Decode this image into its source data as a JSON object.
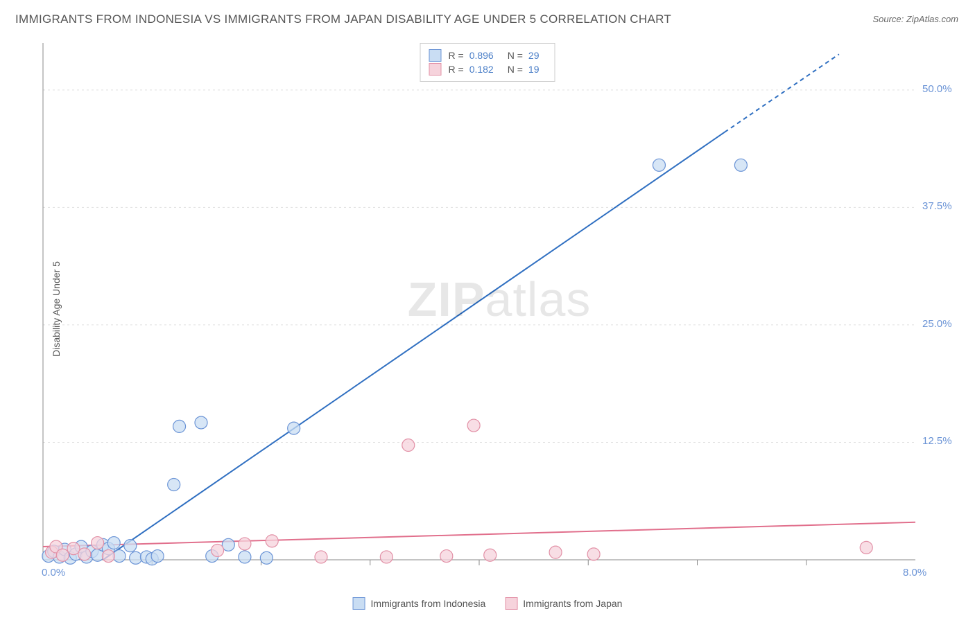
{
  "title": "IMMIGRANTS FROM INDONESIA VS IMMIGRANTS FROM JAPAN DISABILITY AGE UNDER 5 CORRELATION CHART",
  "source": "Source: ZipAtlas.com",
  "y_axis_label": "Disability Age Under 5",
  "watermark": "ZIPatlas",
  "chart": {
    "type": "scatter",
    "xlim": [
      0,
      8.0
    ],
    "ylim": [
      0,
      55.0
    ],
    "x_max_label": "8.0%",
    "origin_label": "0.0%",
    "y_ticks": [
      {
        "v": 12.5,
        "label": "12.5%"
      },
      {
        "v": 25.0,
        "label": "25.0%"
      },
      {
        "v": 37.5,
        "label": "37.5%"
      },
      {
        "v": 50.0,
        "label": "50.0%"
      }
    ],
    "x_ticks": [
      1,
      2,
      3,
      4,
      5,
      6,
      7
    ],
    "grid_color": "#e0e0e0",
    "axis_color": "#888888",
    "background_color": "#ffffff",
    "marker_radius": 9,
    "marker_stroke_width": 1.2,
    "line_width": 2,
    "series": [
      {
        "name": "Immigrants from Indonesia",
        "marker_fill": "#c9ddf3",
        "marker_stroke": "#6b94d6",
        "line_color": "#2f6fc1",
        "R": "0.896",
        "N": "29",
        "trend": {
          "x1": 0.55,
          "y1": 0,
          "x2": 6.25,
          "y2": 45.5,
          "dash_from_x": 6.25,
          "dash_to_x": 7.3,
          "dash_to_y": 53.8
        },
        "points": [
          {
            "x": 0.05,
            "y": 0.4
          },
          {
            "x": 0.1,
            "y": 0.9
          },
          {
            "x": 0.15,
            "y": 0.3
          },
          {
            "x": 0.2,
            "y": 1.1
          },
          {
            "x": 0.25,
            "y": 0.2
          },
          {
            "x": 0.3,
            "y": 0.6
          },
          {
            "x": 0.35,
            "y": 1.4
          },
          {
            "x": 0.4,
            "y": 0.3
          },
          {
            "x": 0.45,
            "y": 0.9
          },
          {
            "x": 0.5,
            "y": 0.5
          },
          {
            "x": 0.55,
            "y": 1.6
          },
          {
            "x": 0.6,
            "y": 1.2
          },
          {
            "x": 0.65,
            "y": 1.8
          },
          {
            "x": 0.7,
            "y": 0.4
          },
          {
            "x": 0.8,
            "y": 1.5
          },
          {
            "x": 0.85,
            "y": 0.2
          },
          {
            "x": 0.95,
            "y": 0.3
          },
          {
            "x": 1.0,
            "y": 0.1
          },
          {
            "x": 1.05,
            "y": 0.4
          },
          {
            "x": 1.2,
            "y": 8.0
          },
          {
            "x": 1.25,
            "y": 14.2
          },
          {
            "x": 1.45,
            "y": 14.6
          },
          {
            "x": 1.55,
            "y": 0.4
          },
          {
            "x": 1.7,
            "y": 1.6
          },
          {
            "x": 1.85,
            "y": 0.3
          },
          {
            "x": 2.05,
            "y": 0.2
          },
          {
            "x": 2.3,
            "y": 14.0
          },
          {
            "x": 5.65,
            "y": 42.0
          },
          {
            "x": 6.4,
            "y": 42.0
          }
        ]
      },
      {
        "name": "Immigrants from Japan",
        "marker_fill": "#f6d3dc",
        "marker_stroke": "#e290a6",
        "line_color": "#e16f8c",
        "R": "0.182",
        "N": "19",
        "trend": {
          "x1": 0,
          "y1": 1.4,
          "x2": 8.0,
          "y2": 4.0
        },
        "points": [
          {
            "x": 0.08,
            "y": 0.8
          },
          {
            "x": 0.12,
            "y": 1.4
          },
          {
            "x": 0.18,
            "y": 0.5
          },
          {
            "x": 0.28,
            "y": 1.2
          },
          {
            "x": 0.38,
            "y": 0.6
          },
          {
            "x": 0.5,
            "y": 1.8
          },
          {
            "x": 0.6,
            "y": 0.4
          },
          {
            "x": 1.6,
            "y": 1.0
          },
          {
            "x": 1.85,
            "y": 1.7
          },
          {
            "x": 2.1,
            "y": 2.0
          },
          {
            "x": 2.55,
            "y": 0.3
          },
          {
            "x": 3.15,
            "y": 0.3
          },
          {
            "x": 3.35,
            "y": 12.2
          },
          {
            "x": 3.7,
            "y": 0.4
          },
          {
            "x": 3.95,
            "y": 14.3
          },
          {
            "x": 4.1,
            "y": 0.5
          },
          {
            "x": 4.7,
            "y": 0.8
          },
          {
            "x": 5.05,
            "y": 0.6
          },
          {
            "x": 7.55,
            "y": 1.3
          }
        ]
      }
    ]
  },
  "legend_top": {
    "R_label": "R =",
    "N_label": "N ="
  },
  "legend_bottom": {
    "items": [
      {
        "swatch_fill": "#c9ddf3",
        "swatch_stroke": "#6b94d6",
        "label": "Immigrants from Indonesia"
      },
      {
        "swatch_fill": "#f6d3dc",
        "swatch_stroke": "#e290a6",
        "label": "Immigrants from Japan"
      }
    ]
  }
}
